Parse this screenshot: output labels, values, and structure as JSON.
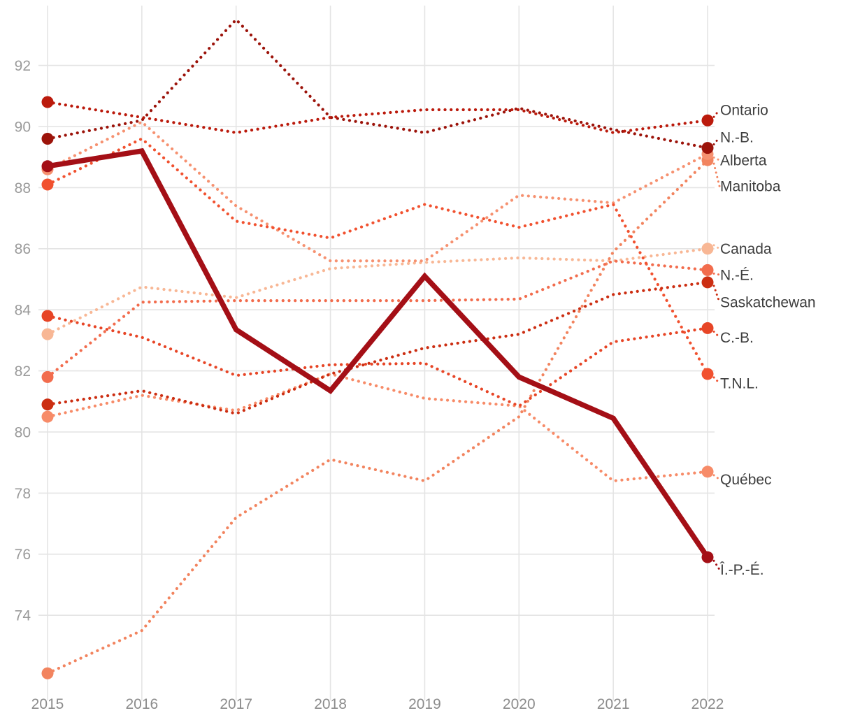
{
  "chart_data": {
    "type": "line",
    "title": "",
    "x": [
      2015,
      2016,
      2017,
      2018,
      2019,
      2020,
      2021,
      2022
    ],
    "xlabel": "",
    "ylabel": "",
    "ylim": [
      71.5,
      94.0
    ],
    "yticks": [
      74,
      76,
      78,
      80,
      82,
      84,
      86,
      88,
      90,
      92
    ],
    "grid": true,
    "legend_position": "right-of-line-endpoints",
    "series": [
      {
        "name": "Canada",
        "label": "Canada",
        "color": "#f8b795",
        "style": "dotted",
        "label_y_value": 86.0,
        "values": [
          83.2,
          84.75,
          84.4,
          85.35,
          85.55,
          85.7,
          85.6,
          86.0
        ]
      },
      {
        "name": "Manitoba",
        "label": "Manitoba",
        "color": "#f2845f",
        "style": "dotted",
        "label_y_value": 88.05,
        "values": [
          72.1,
          73.5,
          77.2,
          79.1,
          78.4,
          80.5,
          85.9,
          88.9
        ]
      },
      {
        "name": "Alberta",
        "label": "Alberta",
        "color": "#f69170",
        "style": "dotted",
        "label_y_value": 88.9,
        "values": [
          88.6,
          90.15,
          87.4,
          85.6,
          85.6,
          87.75,
          87.5,
          89.1
        ]
      },
      {
        "name": "Québec",
        "label": "Québec",
        "color": "#f78b68",
        "style": "dotted",
        "label_y_value": 78.45,
        "values": [
          80.5,
          81.2,
          80.7,
          81.9,
          81.1,
          80.85,
          78.4,
          78.7
        ]
      },
      {
        "name": "N.-É.",
        "label": "N.-É.",
        "color": "#f26c4d",
        "style": "dotted",
        "label_y_value": 85.15,
        "values": [
          81.8,
          84.25,
          84.3,
          84.3,
          84.3,
          84.35,
          85.6,
          85.3
        ]
      },
      {
        "name": "T.N.L.",
        "label": "T.N.L.",
        "color": "#f1512f",
        "style": "dotted",
        "label_y_value": 81.6,
        "values": [
          88.1,
          89.6,
          86.9,
          86.35,
          87.45,
          86.7,
          87.45,
          81.9
        ]
      },
      {
        "name": "C.-B.",
        "label": "C.-B.",
        "color": "#e74526",
        "style": "dotted",
        "label_y_value": 83.1,
        "values": [
          83.8,
          83.1,
          81.85,
          82.2,
          82.25,
          80.85,
          82.95,
          83.4
        ]
      },
      {
        "name": "Saskatchewan",
        "label": "Saskatchewan",
        "color": "#cc2e12",
        "style": "dotted",
        "label_y_value": 84.25,
        "values": [
          80.9,
          81.35,
          80.6,
          81.9,
          82.75,
          83.2,
          84.5,
          84.9
        ]
      },
      {
        "name": "N.-B.",
        "label": "N.-B.",
        "color": "#9c130a",
        "style": "dotted",
        "label_y_value": 89.65,
        "values": [
          89.6,
          90.2,
          93.5,
          90.3,
          89.8,
          90.6,
          89.9,
          89.3
        ]
      },
      {
        "name": "Ontario",
        "label": "Ontario",
        "color": "#bb1a0c",
        "style": "dotted",
        "label_y_value": 90.55,
        "values": [
          90.8,
          90.3,
          89.8,
          90.3,
          90.55,
          90.55,
          89.8,
          90.2
        ]
      },
      {
        "name": "Î.-P.-É.",
        "label": "Î.-P.-É.",
        "color": "#a40f16",
        "style": "solid-bold",
        "label_y_value": 75.5,
        "values": [
          88.7,
          89.2,
          83.35,
          81.35,
          85.1,
          81.8,
          80.45,
          75.9
        ]
      }
    ]
  },
  "colors": {
    "background": "#ffffff",
    "gridline": "#e4e4e4",
    "ytick_label": "#9a9a9a",
    "xtick_label": "#8c8c8c",
    "series_label": "#3e3e3e"
  }
}
